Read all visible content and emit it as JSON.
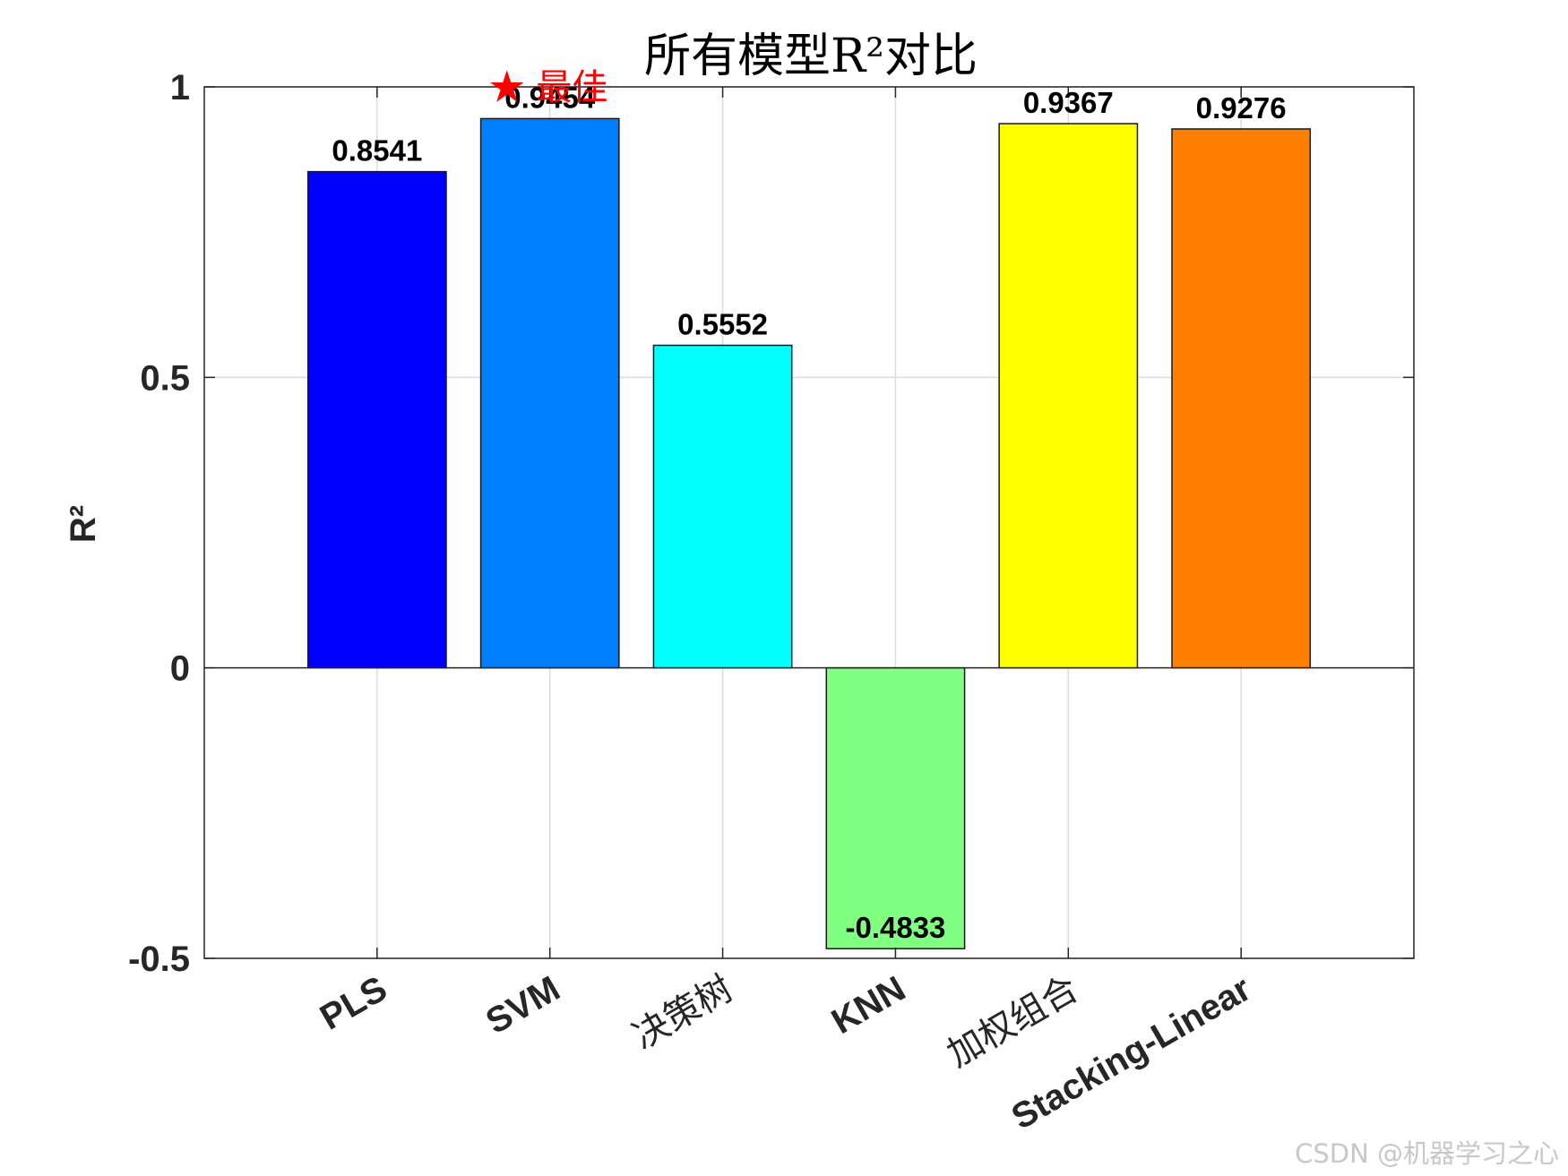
{
  "chart_data": {
    "type": "bar",
    "title": "所有模型R²对比",
    "xlabel": "",
    "ylabel": "R²",
    "categories": [
      "PLS",
      "SVM",
      "决策树",
      "KNN",
      "加权组合",
      "Stacking-Linear"
    ],
    "values": [
      0.8541,
      0.9454,
      0.5552,
      -0.4833,
      0.9367,
      0.9276
    ],
    "value_labels": [
      "0.8541",
      "0.9454",
      "0.5552",
      "-0.4833",
      "0.9367",
      "0.9276"
    ],
    "bar_colors": [
      "#0000ff",
      "#0080ff",
      "#00ffff",
      "#80ff80",
      "#ffff00",
      "#ff8000"
    ],
    "ylim": [
      -0.5,
      1
    ],
    "yticks": [
      -0.5,
      0,
      0.5,
      1
    ],
    "ytick_labels": [
      "-0.5",
      "0",
      "0.5",
      "1"
    ],
    "grid": true,
    "annotations": [
      {
        "text": "★ 最佳",
        "category": "SVM",
        "color": "#ff0000"
      }
    ]
  },
  "watermark": "CSDN @机器学习之心"
}
